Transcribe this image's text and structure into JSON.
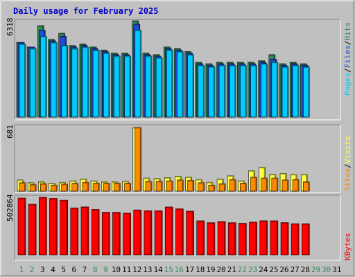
{
  "chart_data": {
    "type": "bar",
    "title": "Daily usage for February 2025",
    "categories": [
      "1",
      "2",
      "3",
      "4",
      "5",
      "6",
      "7",
      "8",
      "9",
      "10",
      "11",
      "12",
      "13",
      "14",
      "15",
      "16",
      "17",
      "18",
      "19",
      "20",
      "21",
      "22",
      "23",
      "24",
      "25",
      "26",
      "27",
      "28",
      "29",
      "30",
      "31"
    ],
    "weekend_days": [
      1,
      2,
      8,
      9,
      15,
      16,
      22,
      23,
      29,
      30
    ],
    "colors": {
      "hits": "#2e8b57",
      "files": "#1f4fd8",
      "pages": "#00ccff",
      "visits": "#ffff44",
      "sites": "#ff8a00",
      "kbytes": "#ff0000",
      "weekday_label": "#000000",
      "weekend_label": "#2e8b57",
      "title": "#0000cc",
      "background": "#c0c0c0"
    },
    "legend": {
      "pages": "Pages",
      "files": "Files",
      "hits": "Hits",
      "sep": "/",
      "sites": "Sites",
      "visits": "Visits",
      "kbytes": "KBytes"
    },
    "panel1": {
      "max_label": "6318",
      "ylim": [
        0,
        6318
      ],
      "hits": [
        4900,
        4600,
        6000,
        5100,
        5500,
        4700,
        4800,
        4600,
        4400,
        4200,
        4200,
        6318,
        4200,
        4100,
        4600,
        4500,
        4300,
        3600,
        3500,
        3600,
        3600,
        3600,
        3600,
        3700,
        4100,
        3500,
        3600,
        3500
      ],
      "files": [
        4900,
        4600,
        5700,
        5000,
        5300,
        4600,
        4700,
        4500,
        4300,
        4100,
        4100,
        6100,
        4100,
        4000,
        4500,
        4400,
        4200,
        3500,
        3400,
        3500,
        3500,
        3500,
        3500,
        3600,
        3800,
        3400,
        3500,
        3400
      ],
      "pages": [
        4800,
        4500,
        5300,
        4900,
        4700,
        4500,
        4600,
        4400,
        4200,
        4000,
        4000,
        5700,
        4000,
        3900,
        4400,
        4300,
        4100,
        3400,
        3300,
        3400,
        3400,
        3400,
        3400,
        3500,
        3600,
        3300,
        3400,
        3300
      ]
    },
    "panel2": {
      "max_label": "681",
      "ylim": [
        0,
        681
      ],
      "visits": [
        120,
        90,
        100,
        85,
        95,
        110,
        130,
        110,
        100,
        100,
        105,
        681,
        140,
        135,
        145,
        160,
        150,
        125,
        95,
        130,
        165,
        110,
        220,
        255,
        180,
        190,
        180,
        180
      ],
      "sites": [
        90,
        70,
        80,
        65,
        75,
        85,
        95,
        85,
        85,
        85,
        85,
        681,
        105,
        105,
        110,
        120,
        115,
        90,
        65,
        80,
        125,
        85,
        150,
        140,
        140,
        120,
        125,
        100
      ]
    },
    "panel3": {
      "max_label": "502864",
      "ylim": [
        0,
        502864
      ],
      "kbytes": [
        502864,
        449000,
        510000,
        500000,
        484000,
        416000,
        425000,
        402000,
        377000,
        377000,
        370000,
        398000,
        391000,
        391000,
        424000,
        408000,
        387000,
        301000,
        285000,
        295000,
        285000,
        279000,
        291000,
        302000,
        301000,
        286000,
        276000,
        276000
      ]
    }
  }
}
